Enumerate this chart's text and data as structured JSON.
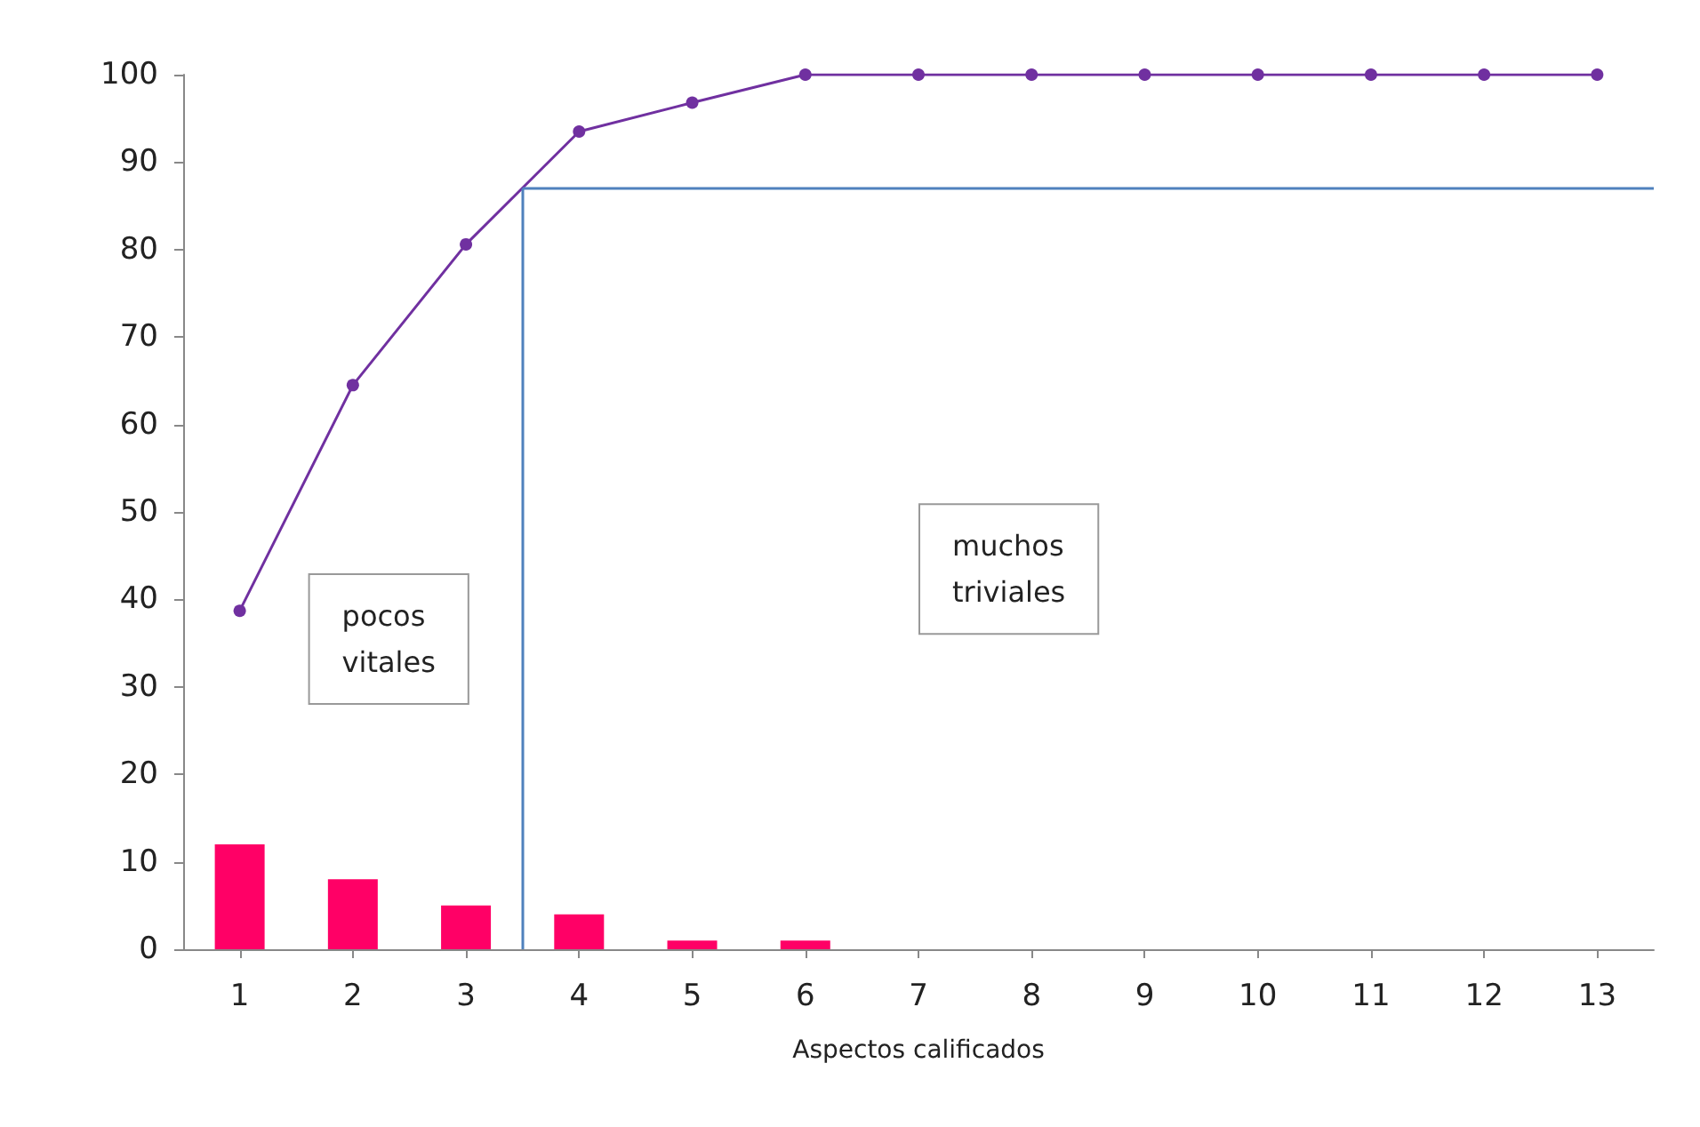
{
  "chart_data": {
    "type": "bar",
    "xlabel": "Aspectos calificados",
    "x": [
      1,
      2,
      3,
      4,
      5,
      6,
      7,
      8,
      9,
      10,
      11,
      12,
      13
    ],
    "xlim": [
      0.5,
      13.5
    ],
    "xticks": [
      1,
      2,
      3,
      4,
      5,
      6,
      7,
      8,
      9,
      10,
      11,
      12,
      13
    ],
    "ylim": [
      0,
      100
    ],
    "yticks": [
      0,
      10,
      20,
      30,
      40,
      50,
      60,
      70,
      80,
      90,
      100
    ],
    "series": [
      {
        "color": "#ff0066",
        "values": [
          12,
          8,
          5,
          4,
          1,
          1,
          0,
          0,
          0,
          0,
          0,
          0,
          0
        ]
      },
      {
        "type": "line",
        "color": "#7030a0",
        "marker": "circle",
        "line_style": "solid",
        "values": [
          38.7,
          64.5,
          80.6,
          93.5,
          96.8,
          100,
          100,
          100,
          100,
          100,
          100,
          100,
          100
        ]
      }
    ],
    "ref_lines": [
      {
        "axis": "x",
        "value": 3.5,
        "color": "#4f81bd"
      },
      {
        "axis": "y",
        "value": 87,
        "color": "#4f81bd"
      }
    ],
    "annotations": [
      "pocos\nvitales",
      "muchos\ntriviales"
    ],
    "grid": false
  }
}
